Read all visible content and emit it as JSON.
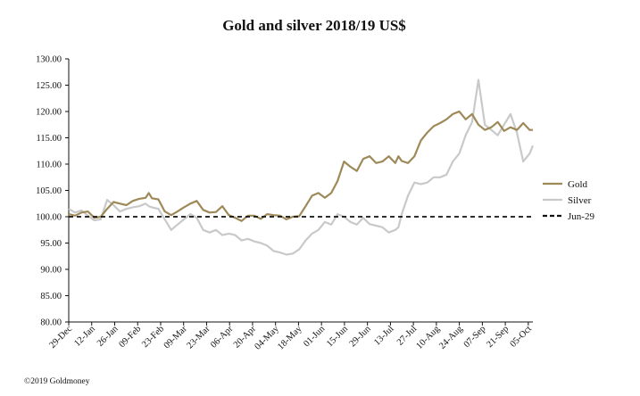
{
  "chart_data": {
    "type": "line",
    "title": "Gold and silver 2018/19  US$",
    "xlabel": "",
    "ylabel": "",
    "ylim": [
      80,
      130
    ],
    "y_ticks": [
      "80.00",
      "85.00",
      "90.00",
      "95.00",
      "100.00",
      "105.00",
      "110.00",
      "115.00",
      "120.00",
      "125.00",
      "130.00"
    ],
    "x_tick_labels": [
      "29-Dec",
      "12-Jan",
      "26-Jan",
      "09-Feb",
      "23-Feb",
      "09-Mar",
      "23-Mar",
      "06-Apr",
      "20-Apr",
      "04-May",
      "18-May",
      "01-Jun",
      "15-Jun",
      "29-Jun",
      "13-Jul",
      "27-Jul",
      "10-Aug",
      "24-Aug",
      "07-Sep",
      "21-Sep",
      "05-Oct"
    ],
    "x_range_days": [
      0,
      290
    ],
    "legend_position": "right",
    "copyright": "©2019 Goldmoney",
    "colors": {
      "gold": "#9e8a59",
      "silver": "#c9c9c9",
      "reference": "#111111"
    },
    "series": [
      {
        "name": "Gold",
        "color": "#9e8a59",
        "x": [
          0,
          4,
          8,
          12,
          16,
          20,
          24,
          28,
          32,
          36,
          40,
          44,
          48,
          50,
          52,
          56,
          60,
          64,
          68,
          72,
          76,
          80,
          84,
          88,
          92,
          96,
          100,
          104,
          108,
          112,
          116,
          120,
          124,
          128,
          132,
          136,
          140,
          144,
          148,
          152,
          156,
          160,
          164,
          168,
          172,
          176,
          180,
          184,
          188,
          192,
          196,
          200,
          204,
          206,
          208,
          212,
          216,
          220,
          224,
          228,
          232,
          236,
          240,
          244,
          248,
          252,
          256,
          260,
          264,
          268,
          272,
          276,
          280,
          284,
          288,
          290
        ],
        "values": [
          100.5,
          100.2,
          100.8,
          101.0,
          99.8,
          100.0,
          101.5,
          102.8,
          102.5,
          102.2,
          103.0,
          103.4,
          103.6,
          104.5,
          103.5,
          103.3,
          101.0,
          100.3,
          101.0,
          101.8,
          102.5,
          103.0,
          101.3,
          100.8,
          100.9,
          102.0,
          100.3,
          99.8,
          99.2,
          100.2,
          100.2,
          99.6,
          100.5,
          100.3,
          100.2,
          99.5,
          100.0,
          100.1,
          102.0,
          104.0,
          104.5,
          103.6,
          104.5,
          106.8,
          110.5,
          109.5,
          108.7,
          111.0,
          111.5,
          110.2,
          110.5,
          111.5,
          110.2,
          111.5,
          110.6,
          110.2,
          111.5,
          114.5,
          116.0,
          117.2,
          117.8,
          118.5,
          119.5,
          120.0,
          118.5,
          119.5,
          117.5,
          116.5,
          117.0,
          118.0,
          116.3,
          117.0,
          116.5,
          117.8,
          116.5,
          116.5
        ]
      },
      {
        "name": "Silver",
        "color": "#c9c9c9",
        "x": [
          0,
          4,
          8,
          12,
          16,
          20,
          24,
          28,
          32,
          36,
          40,
          44,
          48,
          50,
          52,
          56,
          60,
          64,
          68,
          72,
          76,
          80,
          84,
          88,
          92,
          96,
          100,
          104,
          108,
          112,
          116,
          120,
          124,
          128,
          132,
          136,
          140,
          144,
          148,
          152,
          156,
          160,
          164,
          168,
          172,
          176,
          180,
          184,
          188,
          192,
          196,
          200,
          204,
          206,
          208,
          212,
          216,
          220,
          224,
          228,
          232,
          236,
          240,
          244,
          248,
          252,
          256,
          260,
          264,
          268,
          272,
          276,
          280,
          284,
          288,
          290
        ],
        "values": [
          101.5,
          100.8,
          101.2,
          100.2,
          99.3,
          99.5,
          103.2,
          102.2,
          101.0,
          101.5,
          101.8,
          102.0,
          102.5,
          102.0,
          101.8,
          101.5,
          99.5,
          97.5,
          98.5,
          99.5,
          100.5,
          99.8,
          97.5,
          97.0,
          97.5,
          96.5,
          96.8,
          96.5,
          95.5,
          95.8,
          95.3,
          95.0,
          94.5,
          93.5,
          93.2,
          92.8,
          93.0,
          93.8,
          95.5,
          96.8,
          97.5,
          99.0,
          98.5,
          100.5,
          100.0,
          99.0,
          98.5,
          99.8,
          98.6,
          98.3,
          98.0,
          97.0,
          97.5,
          98.0,
          100.5,
          104.0,
          106.5,
          106.2,
          106.5,
          107.5,
          107.5,
          108.0,
          110.5,
          112.0,
          115.5,
          118.0,
          126.0,
          117.5,
          116.5,
          115.5,
          117.5,
          119.5,
          116.0,
          110.5,
          112.0,
          113.5
        ]
      },
      {
        "name": "Jun-29",
        "type": "reference-line",
        "color": "#111111",
        "values": [
          100,
          100
        ]
      }
    ]
  }
}
